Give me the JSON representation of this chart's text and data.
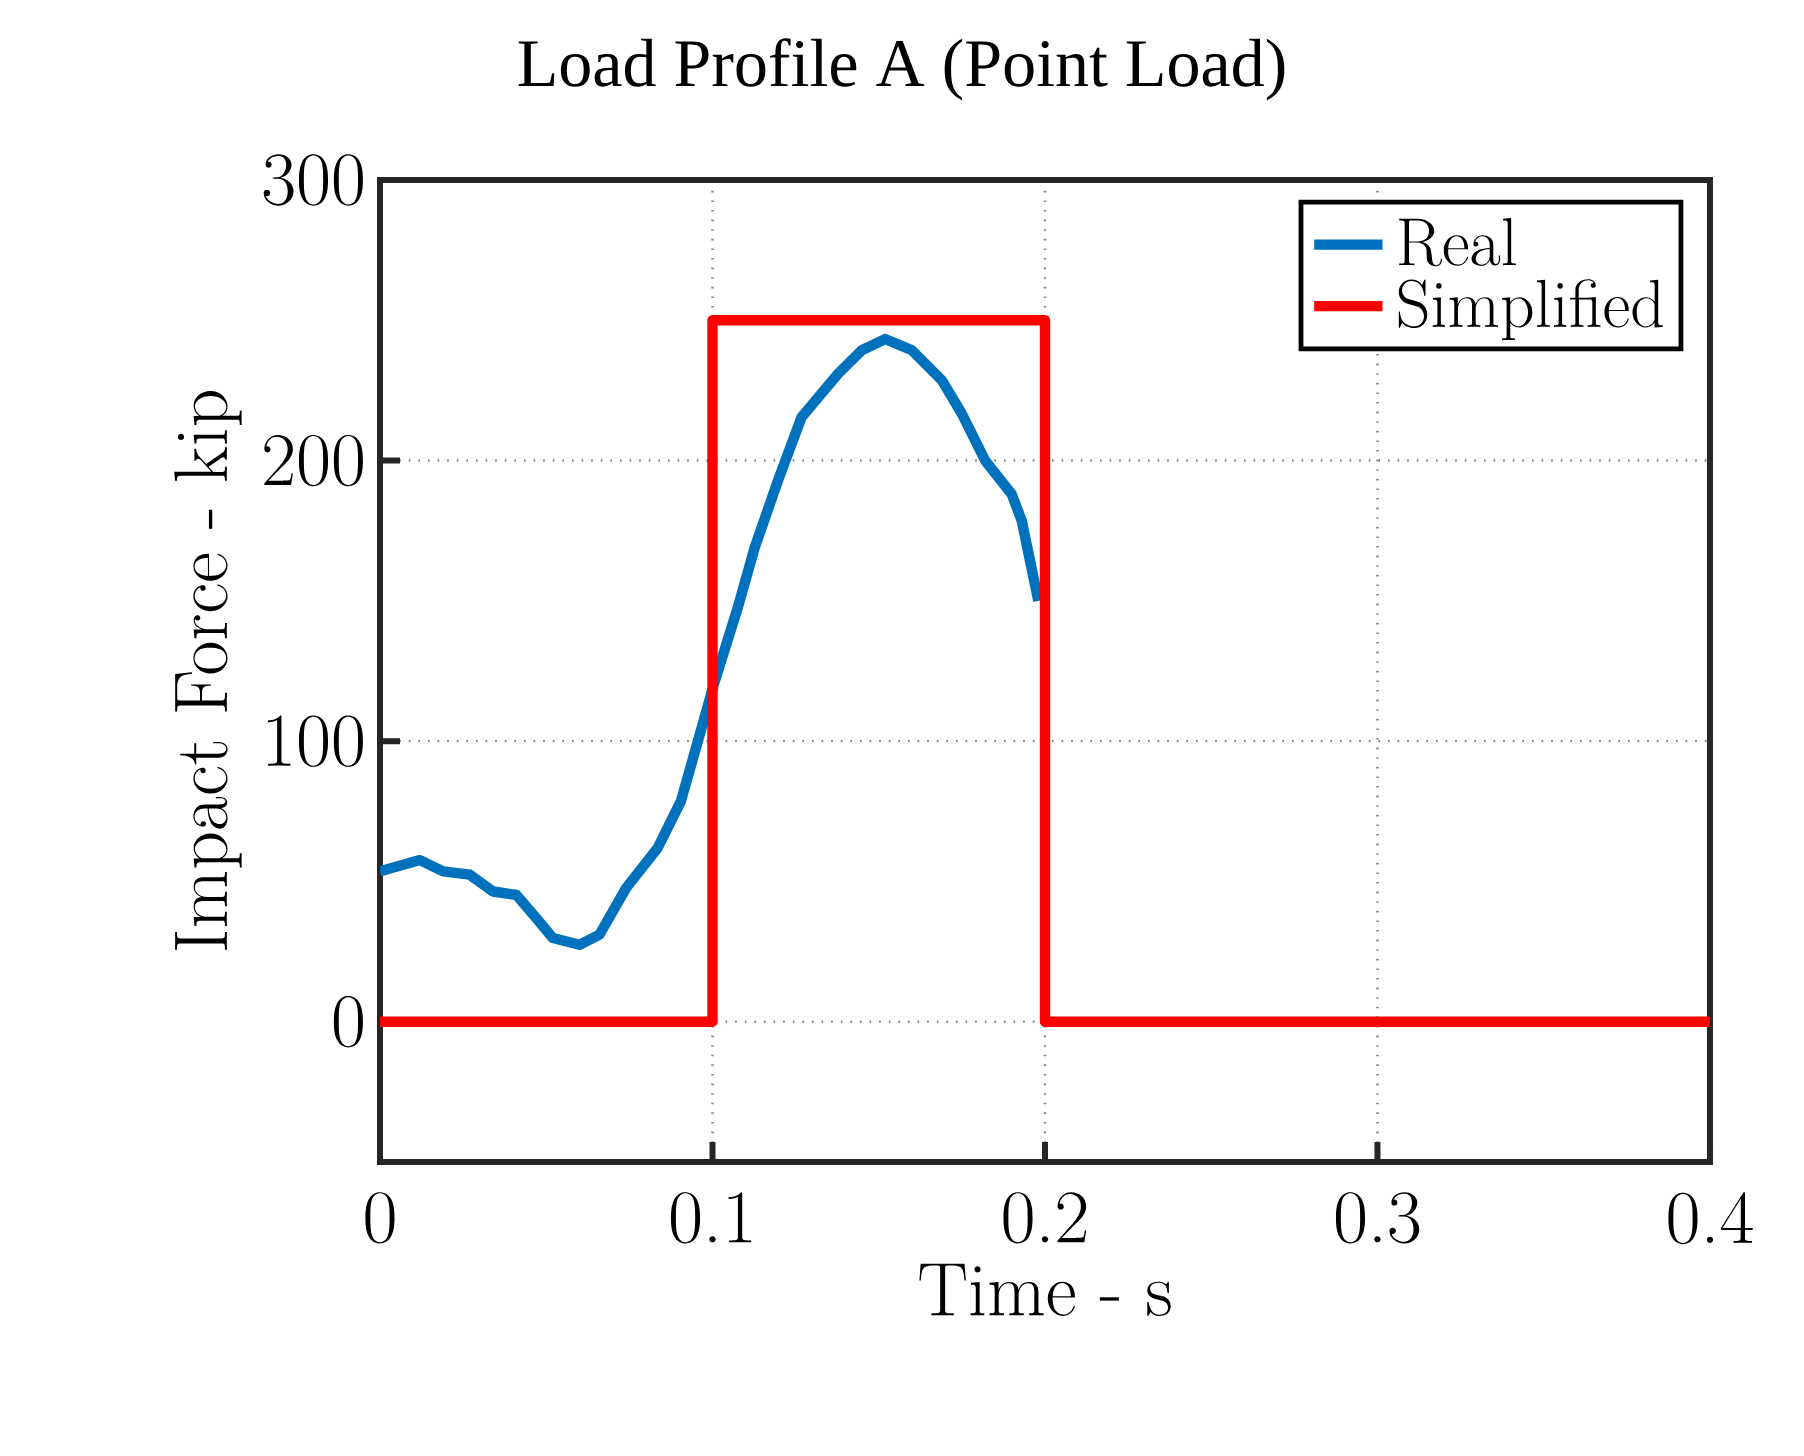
{
  "chart_data": {
    "type": "line",
    "title": "Load Profile A (Point Load)",
    "xlabel": "Time - s",
    "ylabel": "Impact Force - kip",
    "xlim": [
      0,
      0.4
    ],
    "ylim": [
      -50,
      300
    ],
    "xticks": [
      0,
      0.1,
      0.2,
      0.3,
      0.4
    ],
    "yticks": [
      0,
      100,
      200,
      300
    ],
    "grid": true,
    "legend": "top right",
    "marker": "none",
    "line_style": "solid",
    "series": [
      {
        "name": "Real",
        "color": "#0072bd",
        "x": [
          0,
          0.012,
          0.019,
          0.027,
          0.034,
          0.041,
          0.047,
          0.052,
          0.06,
          0.066,
          0.074,
          0.0835,
          0.0905,
          0.0956,
          0.1006,
          0.1076,
          0.1127,
          0.1197,
          0.1268,
          0.1378,
          0.1449,
          0.1519,
          0.16,
          0.169,
          0.175,
          0.182,
          0.19,
          0.193,
          0.198
        ],
        "values": [
          53.6,
          57.6,
          53.6,
          52.4,
          46.4,
          45.2,
          36.9,
          29.8,
          27.4,
          31,
          47.6,
          61.9,
          78.6,
          100,
          121,
          147.6,
          169,
          192.9,
          215.5,
          231,
          239.3,
          243.3,
          239.3,
          228.6,
          216.7,
          200,
          188,
          178.6,
          150
        ]
      },
      {
        "name": "Simplified",
        "color": "#ff0000",
        "x": [
          0,
          0.1,
          0.1,
          0.2,
          0.2,
          0.4
        ],
        "values": [
          0,
          0,
          250,
          250,
          0,
          0
        ]
      }
    ]
  }
}
